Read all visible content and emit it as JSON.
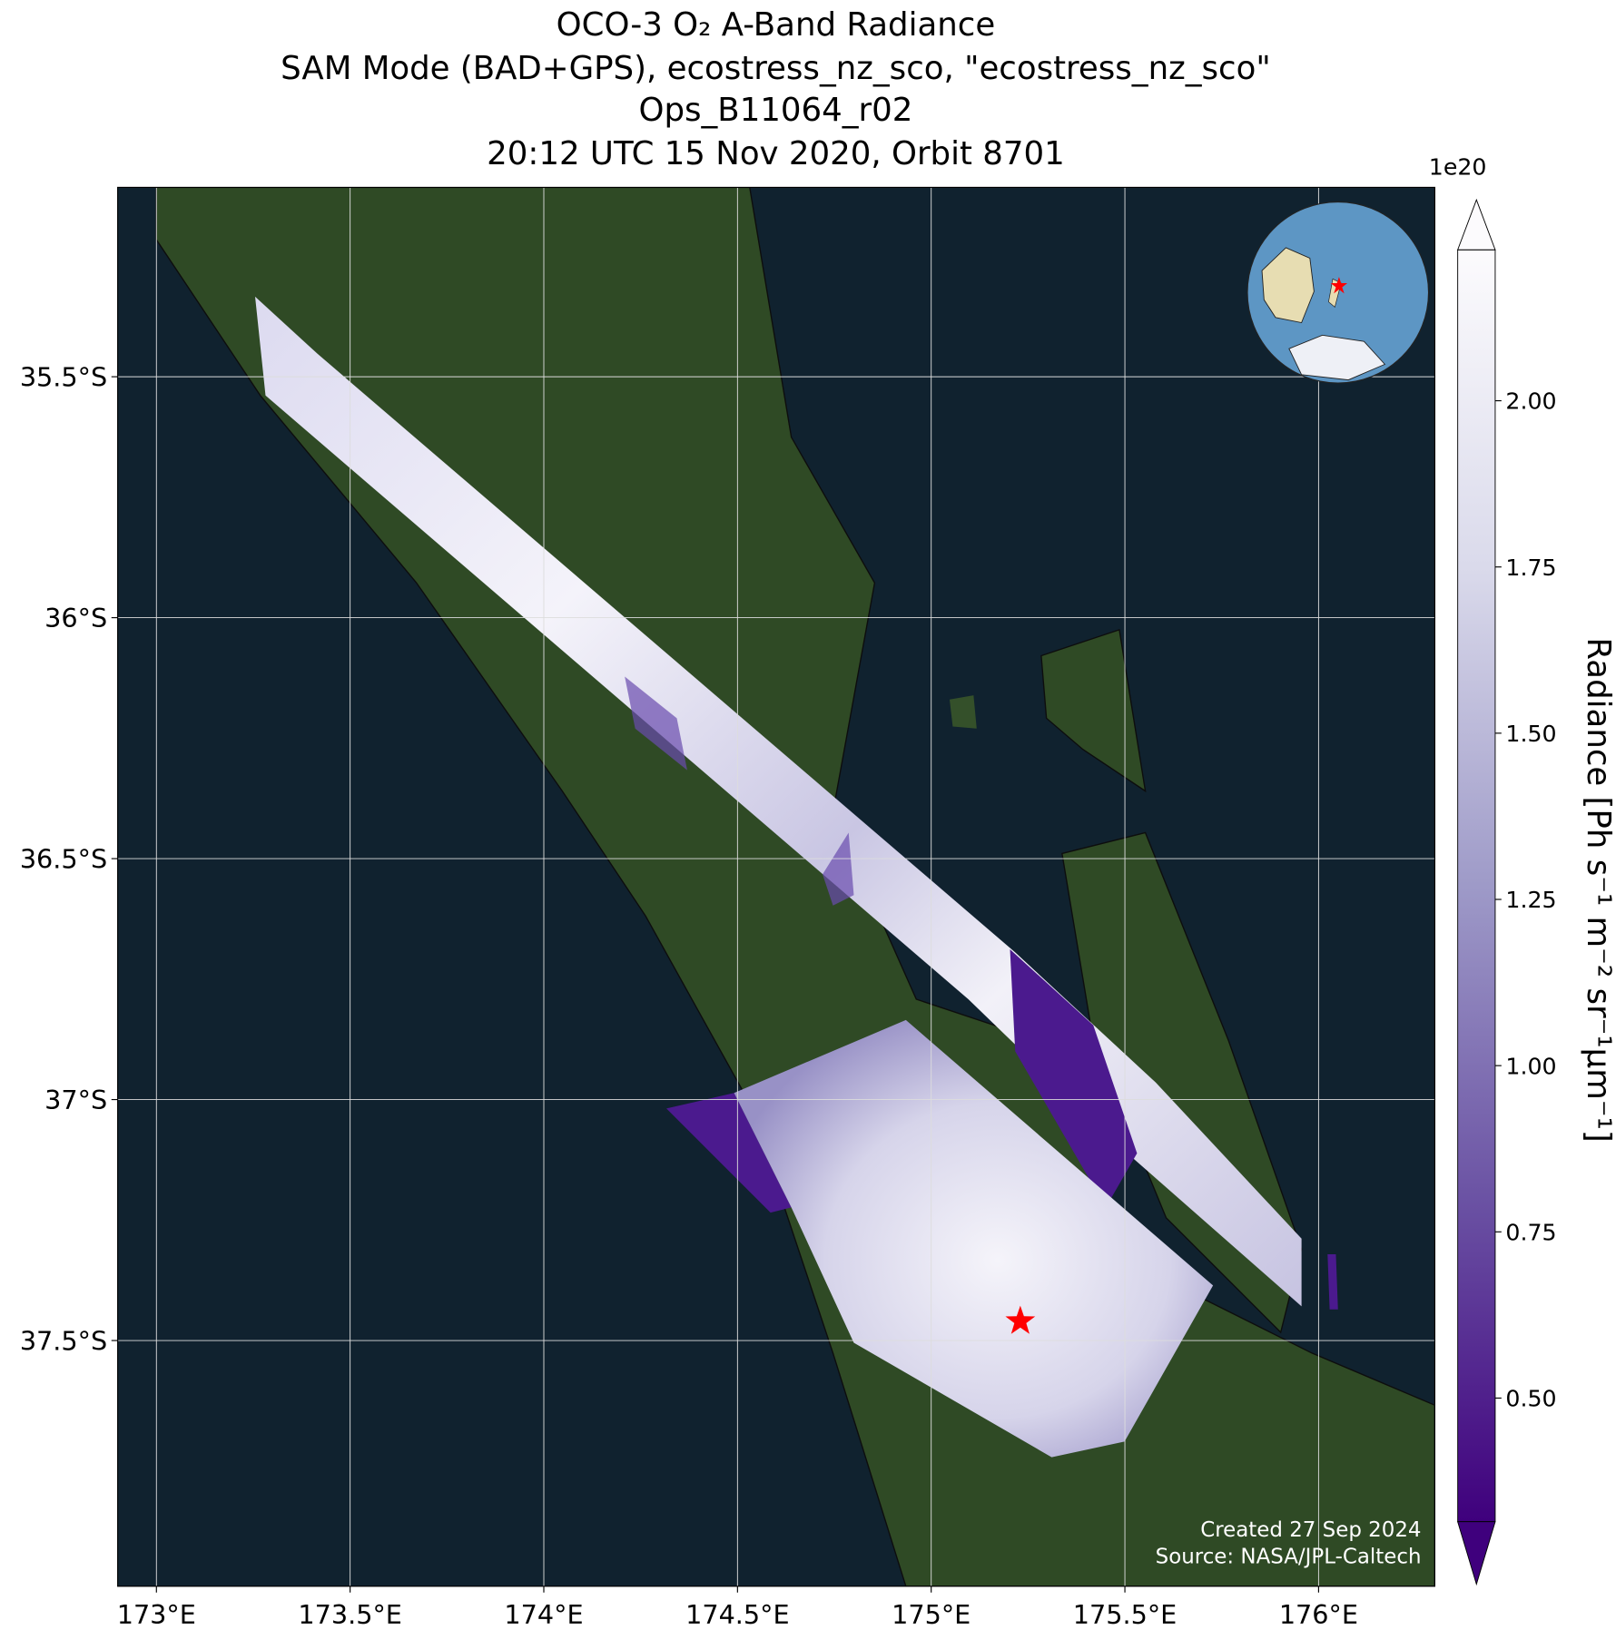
{
  "chart_data": {
    "type": "map",
    "title": [
      "OCO-3 O₂ A-Band Radiance",
      "SAM Mode (BAD+GPS), ecostress_nz_sco, \"ecostress_nz_sco\"",
      "Ops_B11064_r02",
      "20:12 UTC 15 Nov 2020, Orbit 8701"
    ],
    "xlim": [
      172.9,
      176.3
    ],
    "ylim": [
      -38.01,
      -35.107
    ],
    "xticks": [
      {
        "value": 173,
        "label": "173°E"
      },
      {
        "value": 173.5,
        "label": "173.5°E"
      },
      {
        "value": 174,
        "label": "174°E"
      },
      {
        "value": 174.5,
        "label": "174.5°E"
      },
      {
        "value": 175,
        "label": "175°E"
      },
      {
        "value": 175.5,
        "label": "175.5°E"
      },
      {
        "value": 176,
        "label": "176°E"
      }
    ],
    "yticks": [
      {
        "value": -35.5,
        "label": "35.5°S"
      },
      {
        "value": -36,
        "label": "36°S"
      },
      {
        "value": -36.5,
        "label": "36.5°S"
      },
      {
        "value": -37,
        "label": "37°S"
      },
      {
        "value": -37.5,
        "label": "37.5°S"
      }
    ],
    "grid": true,
    "target": {
      "lon": 175.23,
      "lat": -37.46,
      "color": "#ff0000"
    },
    "colorbar": {
      "label": "Radiance [Ph s⁻¹ m⁻² sr⁻¹μm⁻¹]",
      "offset_label": "1e20",
      "lim": [
        0.314,
        2.227
      ],
      "ticks": [
        {
          "value": 0.5,
          "label": "0.50"
        },
        {
          "value": 0.75,
          "label": "0.75"
        },
        {
          "value": 1.0,
          "label": "1.00"
        },
        {
          "value": 1.25,
          "label": "1.25"
        },
        {
          "value": 1.5,
          "label": "1.50"
        },
        {
          "value": 1.75,
          "label": "1.75"
        },
        {
          "value": 2.0,
          "label": "2.00"
        }
      ],
      "colormap": [
        "#3f007d",
        "#6a51a3",
        "#9e9ac8",
        "#dadaeb",
        "#fcfbfd"
      ]
    },
    "credits": [
      "Created 27 Sep 2024",
      "Source: NASA/JPL-Caltech"
    ]
  }
}
